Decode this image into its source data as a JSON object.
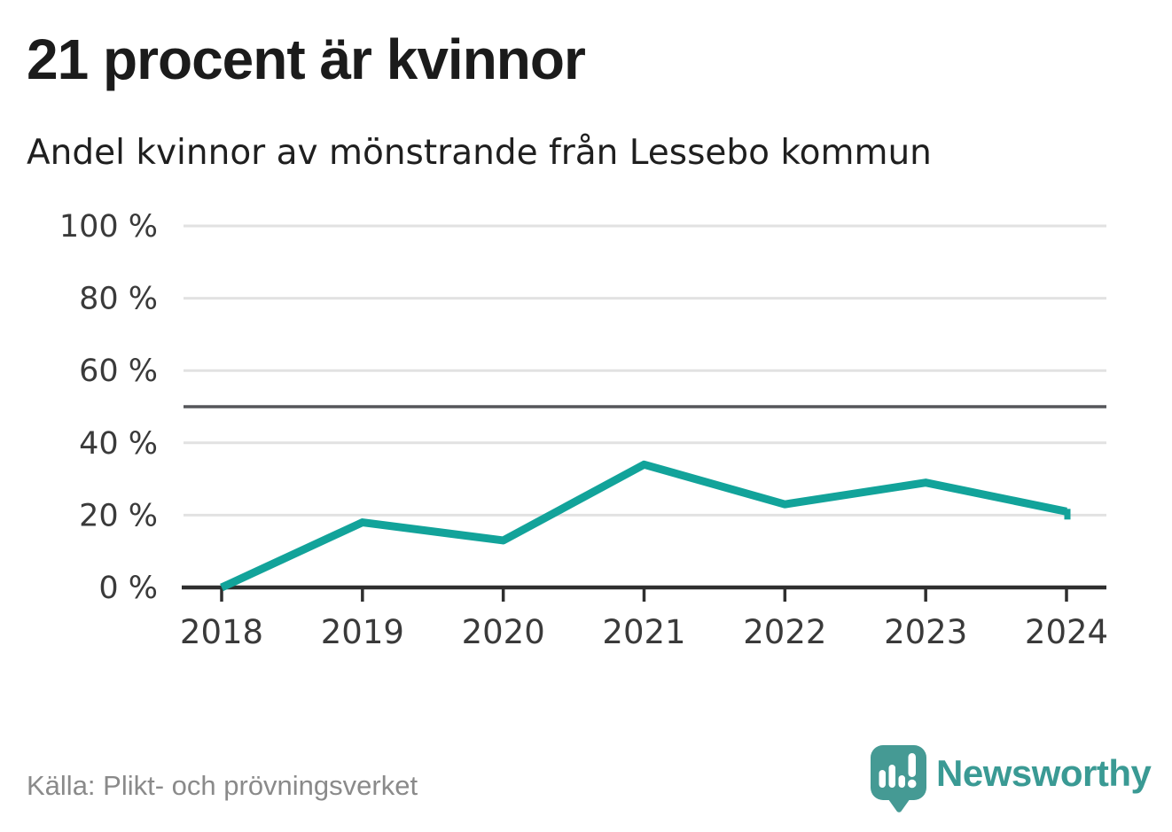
{
  "chart_data": {
    "type": "line",
    "title": "21 procent är kvinnor",
    "subtitle": "Andel kvinnor av mönstrande från Lessebo kommun",
    "x": [
      "2018",
      "2019",
      "2020",
      "2021",
      "2022",
      "2023",
      "2024"
    ],
    "series": [
      {
        "name": "Andel kvinnor av mönstrande",
        "values": [
          0,
          18,
          13,
          34,
          23,
          29,
          21
        ]
      }
    ],
    "unit": "%",
    "ylim": [
      0,
      100
    ],
    "y_ticks": [
      0,
      20,
      40,
      60,
      80,
      100
    ],
    "y_tick_labels": [
      "0 %",
      "20 %",
      "40 %",
      "60 %",
      "80 %",
      "100 %"
    ],
    "reference_line": 50,
    "grid": true,
    "legend": "none",
    "colors": {
      "line": "#12a39a",
      "grid": "#e2e2e2",
      "reference_line": "#55565a",
      "axis": "#2f2f2f",
      "tick_labels": "#3a3a3a"
    }
  },
  "footer": {
    "source": "Källa: Plikt- och prövningsverket",
    "brand": "Newsworthy",
    "brand_color": "#3a9a94",
    "brand_icon_color": "#459a94"
  }
}
